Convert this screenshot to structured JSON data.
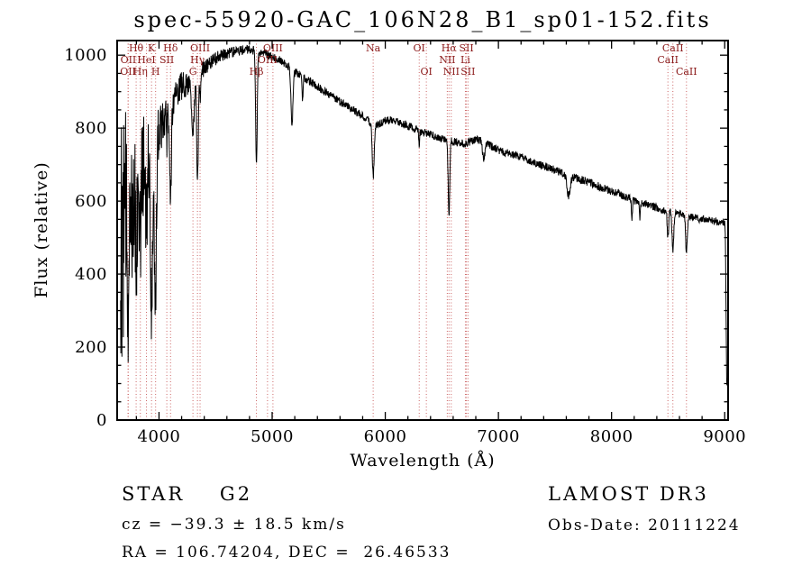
{
  "title": "spec-55920-GAC_106N28_B1_sp01-152.fits",
  "annotations": {
    "class_label": "STAR    G2",
    "survey": "LAMOST DR3",
    "cz": "cz = −39.3 ± 18.5 km/s",
    "obs_date": "Obs-Date: 20111224",
    "coords": "RA = 106.74204, DEC =  26.46533"
  },
  "chart_data": {
    "type": "line",
    "title": "spec-55920-GAC_106N28_B1_sp01-152.fits",
    "xlabel": "Wavelength (Å)",
    "ylabel": "Flux (relative)",
    "xlim": [
      3630,
      9030
    ],
    "ylim": [
      0,
      1040
    ],
    "xticks": [
      4000,
      5000,
      6000,
      7000,
      8000,
      9000
    ],
    "yticks": [
      0,
      200,
      400,
      600,
      800,
      1000
    ],
    "x_minor_step": 200,
    "y_minor_step": 50,
    "grid": false,
    "line_color": "#000000",
    "marker_line_color": "#cc6666",
    "marker_label_color": "#8b1a1a",
    "spectral_lines": [
      {
        "label": "Hθ",
        "wavelength": 3798,
        "row": 0
      },
      {
        "label": "K",
        "wavelength": 3934,
        "row": 0
      },
      {
        "label": "Hδ",
        "wavelength": 4102,
        "row": 0
      },
      {
        "label": "OIII",
        "wavelength": 4363,
        "row": 0
      },
      {
        "label": "OIII",
        "wavelength": 5007,
        "row": 0
      },
      {
        "label": "Na",
        "wavelength": 5893,
        "row": 0
      },
      {
        "label": "OI",
        "wavelength": 6300,
        "row": 0
      },
      {
        "label": "Hα",
        "wavelength": 6563,
        "row": 0
      },
      {
        "label": "SII",
        "wavelength": 6717,
        "row": 0
      },
      {
        "label": "CaII",
        "wavelength": 8542,
        "row": 0
      },
      {
        "label": "OII",
        "wavelength": 3729,
        "row": 1
      },
      {
        "label": "HeI",
        "wavelength": 3889,
        "row": 1
      },
      {
        "label": "SII",
        "wavelength": 4069,
        "row": 1
      },
      {
        "label": "Hγ",
        "wavelength": 4340,
        "row": 1
      },
      {
        "label": "OIII",
        "wavelength": 4959,
        "row": 1
      },
      {
        "label": "NII",
        "wavelength": 6548,
        "row": 1
      },
      {
        "label": "Li",
        "wavelength": 6708,
        "row": 1
      },
      {
        "label": "CaII",
        "wavelength": 8498,
        "row": 1
      },
      {
        "label": "OII",
        "wavelength": 3726,
        "row": 2
      },
      {
        "label": "Hη",
        "wavelength": 3835,
        "row": 2
      },
      {
        "label": "H",
        "wavelength": 3970,
        "row": 2
      },
      {
        "label": "G",
        "wavelength": 4300,
        "row": 2
      },
      {
        "label": "Hβ",
        "wavelength": 4861,
        "row": 2
      },
      {
        "label": "OI",
        "wavelength": 6363,
        "row": 2
      },
      {
        "label": "NII",
        "wavelength": 6583,
        "row": 2
      },
      {
        "label": "SII",
        "wavelength": 6731,
        "row": 2
      },
      {
        "label": "CaII",
        "wavelength": 8662,
        "row": 2
      }
    ],
    "sample_step": 2.5,
    "data_range": [
      3660,
      9020
    ],
    "noise": {
      "base": 11,
      "blue_amp": 400,
      "blue_scale": 220,
      "seed": 12
    },
    "continuum_anchors": [
      [
        3660,
        480
      ],
      [
        3680,
        520
      ],
      [
        3700,
        560
      ],
      [
        3720,
        520
      ],
      [
        3740,
        590
      ],
      [
        3760,
        610
      ],
      [
        3780,
        630
      ],
      [
        3800,
        630
      ],
      [
        3820,
        650
      ],
      [
        3840,
        650
      ],
      [
        3860,
        690
      ],
      [
        3880,
        700
      ],
      [
        3900,
        730
      ],
      [
        3920,
        730
      ],
      [
        3940,
        720
      ],
      [
        3960,
        720
      ],
      [
        3980,
        770
      ],
      [
        4000,
        810
      ],
      [
        4050,
        840
      ],
      [
        4100,
        860
      ],
      [
        4150,
        890
      ],
      [
        4200,
        915
      ],
      [
        4250,
        925
      ],
      [
        4300,
        935
      ],
      [
        4350,
        950
      ],
      [
        4400,
        965
      ],
      [
        4450,
        980
      ],
      [
        4500,
        990
      ],
      [
        4550,
        1000
      ],
      [
        4600,
        1005
      ],
      [
        4650,
        1008
      ],
      [
        4700,
        1012
      ],
      [
        4750,
        1015
      ],
      [
        4800,
        1015
      ],
      [
        4850,
        1012
      ],
      [
        4900,
        1008
      ],
      [
        4950,
        1002
      ],
      [
        5000,
        996
      ],
      [
        5050,
        990
      ],
      [
        5100,
        980
      ],
      [
        5150,
        968
      ],
      [
        5200,
        955
      ],
      [
        5250,
        945
      ],
      [
        5300,
        935
      ],
      [
        5350,
        925
      ],
      [
        5400,
        913
      ],
      [
        5450,
        903
      ],
      [
        5500,
        893
      ],
      [
        5550,
        883
      ],
      [
        5600,
        873
      ],
      [
        5650,
        863
      ],
      [
        5700,
        853
      ],
      [
        5750,
        843
      ],
      [
        5800,
        833
      ],
      [
        5850,
        820
      ],
      [
        5900,
        805
      ],
      [
        5950,
        812
      ],
      [
        6000,
        820
      ],
      [
        6050,
        822
      ],
      [
        6100,
        818
      ],
      [
        6150,
        812
      ],
      [
        6200,
        806
      ],
      [
        6250,
        800
      ],
      [
        6300,
        793
      ],
      [
        6350,
        787
      ],
      [
        6400,
        782
      ],
      [
        6450,
        777
      ],
      [
        6500,
        772
      ],
      [
        6550,
        768
      ],
      [
        6600,
        764
      ],
      [
        6650,
        760
      ],
      [
        6700,
        757
      ],
      [
        6750,
        763
      ],
      [
        6800,
        770
      ],
      [
        6850,
        766
      ],
      [
        6900,
        758
      ],
      [
        6950,
        748
      ],
      [
        7000,
        740
      ],
      [
        7050,
        734
      ],
      [
        7100,
        730
      ],
      [
        7150,
        726
      ],
      [
        7200,
        722
      ],
      [
        7250,
        716
      ],
      [
        7300,
        709
      ],
      [
        7350,
        703
      ],
      [
        7400,
        697
      ],
      [
        7450,
        691
      ],
      [
        7500,
        685
      ],
      [
        7550,
        679
      ],
      [
        7600,
        672
      ],
      [
        7650,
        667
      ],
      [
        7700,
        662
      ],
      [
        7750,
        657
      ],
      [
        7800,
        652
      ],
      [
        7850,
        645
      ],
      [
        7900,
        639
      ],
      [
        7950,
        633
      ],
      [
        8000,
        627
      ],
      [
        8050,
        621
      ],
      [
        8100,
        615
      ],
      [
        8150,
        608
      ],
      [
        8200,
        602
      ],
      [
        8250,
        597
      ],
      [
        8300,
        592
      ],
      [
        8350,
        587
      ],
      [
        8400,
        582
      ],
      [
        8450,
        577
      ],
      [
        8500,
        572
      ],
      [
        8550,
        568
      ],
      [
        8600,
        564
      ],
      [
        8650,
        560
      ],
      [
        8700,
        556
      ],
      [
        8750,
        553
      ],
      [
        8800,
        550
      ],
      [
        8850,
        548
      ],
      [
        8900,
        546
      ],
      [
        8950,
        544
      ],
      [
        9000,
        542
      ],
      [
        9006,
        500
      ],
      [
        9012,
        300
      ],
      [
        9018,
        90
      ]
    ],
    "absorption_features": [
      {
        "center": 3727,
        "depth": 150,
        "width": 5
      },
      {
        "center": 3798,
        "depth": 180,
        "width": 5
      },
      {
        "center": 3835,
        "depth": 200,
        "width": 5
      },
      {
        "center": 3889,
        "depth": 230,
        "width": 6
      },
      {
        "center": 3934,
        "depth": 420,
        "width": 9
      },
      {
        "center": 3969,
        "depth": 400,
        "width": 9
      },
      {
        "center": 4069,
        "depth": 90,
        "width": 4
      },
      {
        "center": 4102,
        "depth": 280,
        "width": 7
      },
      {
        "center": 4300,
        "depth": 150,
        "width": 12
      },
      {
        "center": 4340,
        "depth": 300,
        "width": 7
      },
      {
        "center": 4363,
        "depth": 70,
        "width": 4
      },
      {
        "center": 4861,
        "depth": 310,
        "width": 7
      },
      {
        "center": 5175,
        "depth": 150,
        "width": 9
      },
      {
        "center": 5269,
        "depth": 60,
        "width": 5
      },
      {
        "center": 5893,
        "depth": 140,
        "width": 8
      },
      {
        "center": 6300,
        "depth": 40,
        "width": 4
      },
      {
        "center": 6563,
        "depth": 210,
        "width": 7
      },
      {
        "center": 6870,
        "depth": 50,
        "width": 10
      },
      {
        "center": 7620,
        "depth": 55,
        "width": 14
      },
      {
        "center": 8180,
        "depth": 55,
        "width": 4
      },
      {
        "center": 8250,
        "depth": 45,
        "width": 4
      },
      {
        "center": 8498,
        "depth": 70,
        "width": 6
      },
      {
        "center": 8542,
        "depth": 110,
        "width": 7
      },
      {
        "center": 8662,
        "depth": 100,
        "width": 7
      }
    ]
  }
}
